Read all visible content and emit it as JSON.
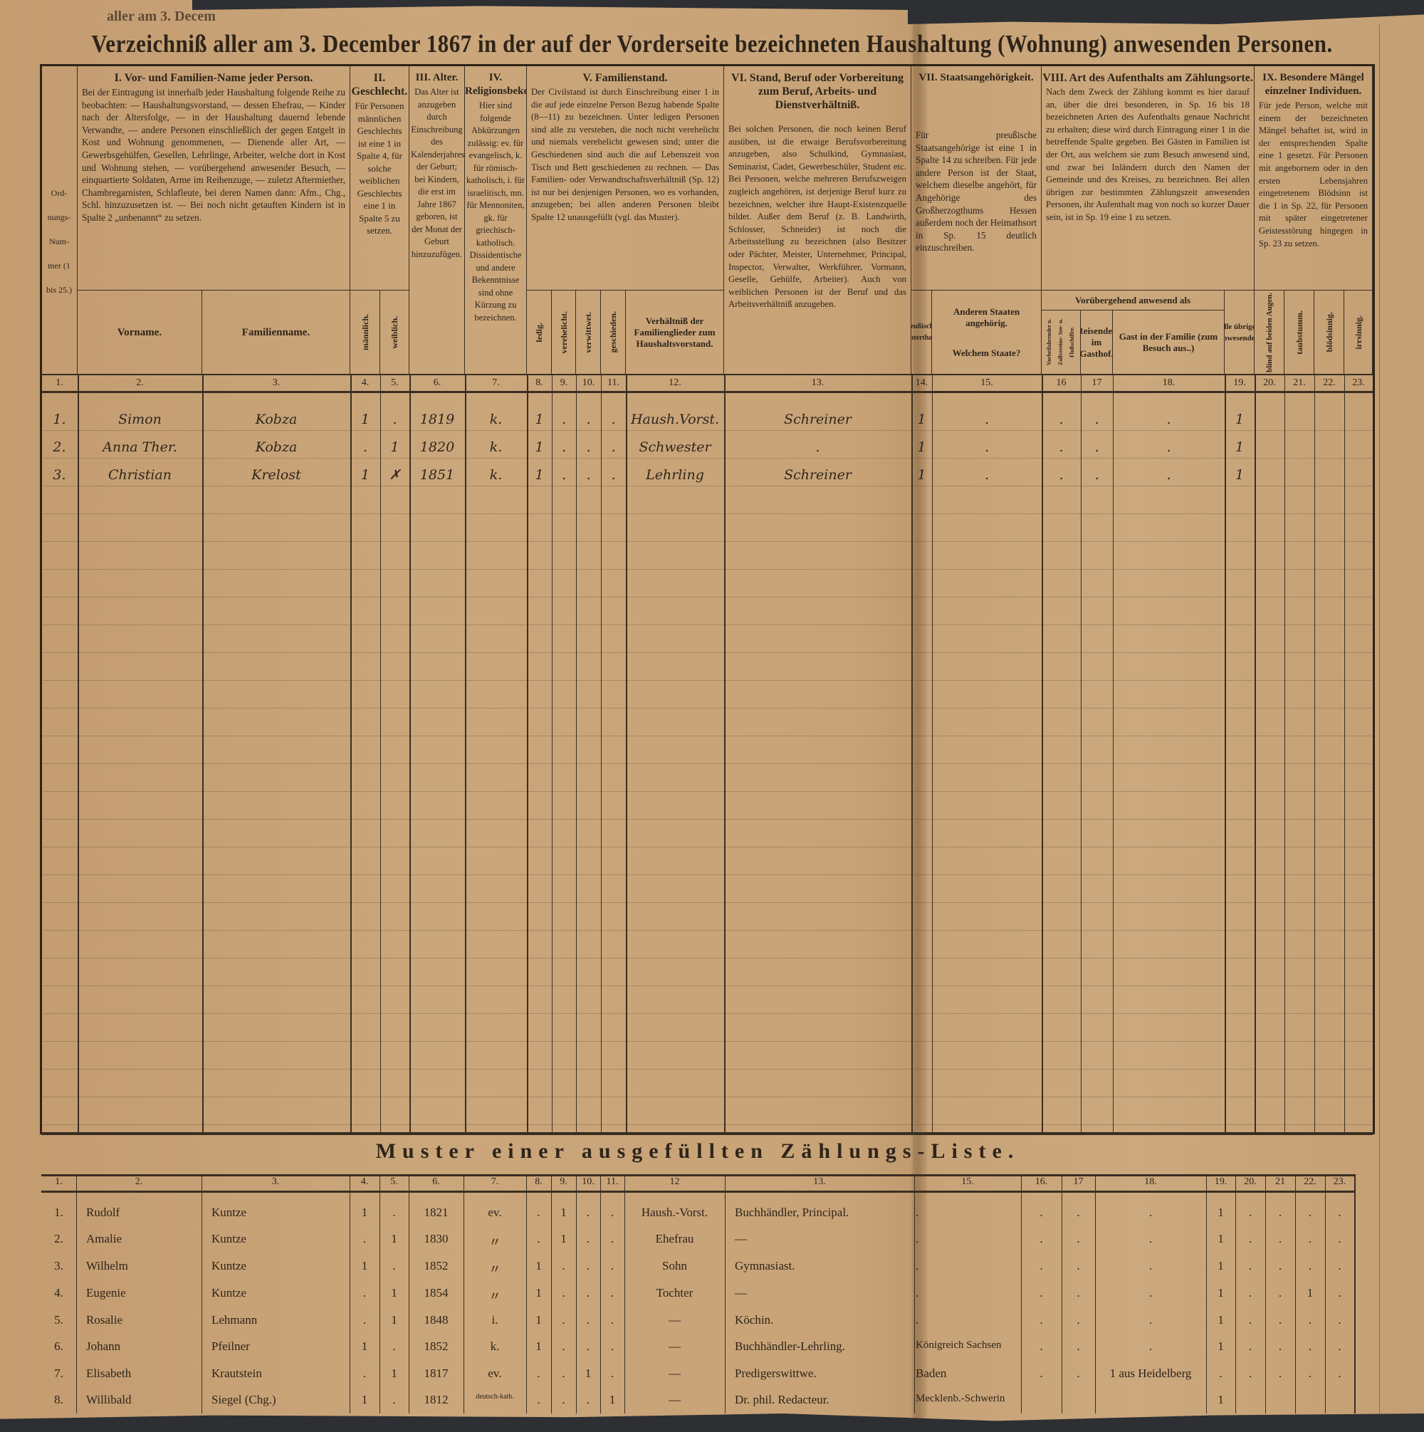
{
  "fragment_text": "aller am 3. Decem",
  "title": "Verzeichniß aller am 3. December 1867 in der auf der Vorderseite bezeichneten Haushaltung (Wohnung) anwesenden Personen.",
  "header": {
    "ordnungsnummer": "Ord-nungs-Num-mer (1 bis 25.)",
    "sec1": {
      "title": "I. Vor- und Familien-Name jeder Person.",
      "text": "Bei der Eintragung ist innerhalb jeder Haushaltung folgende Reihe zu beobachten: — Haushaltungsvorstand, — dessen Ehefrau, — Kinder nach der Altersfolge, — in der Haushaltung dauernd lebende Verwandte, — andere Personen einschließlich der gegen Entgelt in Kost und Wohnung genommenen, — Dienende aller Art, — Gewerbsgehülfen, Gesellen, Lehrlinge, Arbeiter, welche dort in Kost und Wohnung stehen, — vorübergehend anwesender Besuch, — einquartierte Soldaten, Arme im Reihenzuge, — zuletzt Aftermiether, Chambregarnisten, Schlafleute, bei deren Namen dann: Afm., Chg., Schl. hinzuzusetzen ist. — Bei noch nicht getauften Kindern ist in Spalte 2 „unbenannt“ zu setzen.",
      "vorname": "Vorname.",
      "familienname": "Familienname."
    },
    "sec2": {
      "title": "II. Geschlecht.",
      "text": "Für Personen männlichen Geschlechts ist eine 1 in Spalte 4, für solche weiblichen Geschlechts eine 1 in Spalte 5 zu setzen.",
      "maennlich": "männlich.",
      "weiblich": "weiblich."
    },
    "sec3": {
      "title": "III. Alter.",
      "text": "Das Alter ist anzugeben durch Einschreibung des Kalenderjahres der Geburt; bei Kindern, die erst im Jahre 1867 geboren, ist der Monat der Geburt hinzuzufügen."
    },
    "sec4": {
      "title": "IV. Religionsbekenntniß.",
      "text": "Hier sind folgende Abkürzungen zulässig: ev. für evangelisch, k. für römisch-katholisch, i. für israelitisch, mn. für Mennoniten, gk. für griechisch-katholisch. Dissidentische und andere Bekenntnisse sind ohne Kürzung zu bezeichnen."
    },
    "sec5": {
      "title": "V. Familienstand.",
      "text": "Der Civilstand ist durch Einschreibung einer 1 in die auf jede einzelne Person Bezug habende Spalte (8—11) zu bezeichnen. Unter ledigen Personen sind alle zu verstehen, die noch nicht verehelicht und niemals verehelicht gewesen sind; unter die Geschiedenen sind auch die auf Lebenszeit von Tisch und Bett geschiedenen zu rechnen. — Das Familien- oder Verwandtschaftsverhältniß (Sp. 12) ist nur bei denjenigen Personen, wo es vorhanden, anzugeben; bei allen anderen Personen bleibt Spalte 12 unausgefüllt (vgl. das Muster).",
      "ledig": "ledig.",
      "verehelicht": "verehelicht.",
      "verwittwet": "verwittwet.",
      "geschieden": "geschieden.",
      "verhaeltniss": "Verhältniß der Familienglieder zum Haushaltsvorstand."
    },
    "sec6": {
      "title": "VI. Stand, Beruf oder Vorbereitung zum Beruf, Arbeits- und Dienstverhältniß.",
      "text": "Bei solchen Personen, die noch keinen Beruf ausüben, ist die etwaige Berufsvorbereitung anzugeben, also Schulkind, Gymnasiast, Seminarist, Cadet, Gewerbeschüler, Student etc. Bei Personen, welche mehreren Berufszweigen zugleich angehören, ist derjenige Beruf kurz zu bezeichnen, welcher ihre Haupt-Existenzquelle bildet. Außer dem Beruf (z. B. Landwirth, Schlosser, Schneider) ist noch die Arbeitsstellung zu bezeichnen (also Besitzer oder Pächter, Meister, Unternehmer, Principal, Inspector, Verwalter, Werkführer, Vormann, Geselle, Gehülfe, Arbeiter). Auch von weiblichen Personen ist der Beruf und das Arbeitsverhältniß anzugeben."
    },
    "sec7": {
      "title": "VII. Staatsangehörigkeit.",
      "text": "Für preußische Staatsangehörige ist eine 1 in Spalte 14 zu schreiben. Für jede andere Person ist der Staat, welchem dieselbe angehört, für Angehörige des Großherzogthums Hessen außerdem noch der Heimathsort in Sp. 15 deutlich einzuschreiben.",
      "preussisch": "Preußischer Unterthan.",
      "andere": "Anderen Staaten angehörig.",
      "welchem": "Welchem Staate?"
    },
    "sec8": {
      "title": "VIII. Art des Aufenthalts am Zählungsorte.",
      "text": "Nach dem Zweck der Zählung kommt es hier darauf an, über die drei besonderen, in Sp. 16 bis 18 bezeichneten Arten des Aufenthalts genaue Nachricht zu erhalten; diese wird durch Eintragung einer 1 in die betreffende Spalte gegeben. Bei Gästen in Familien ist der Ort, aus welchem sie zum Besuch anwesend sind, und zwar bei Inländern durch den Namen der Gemeinde und des Kreises, zu bezeichnen. Bei allen übrigen zur bestimmten Zählungszeit anwesenden Personen, ihr Aufenthalt mag von noch so kurzer Dauer sein, ist in Sp. 19 eine 1 zu setzen.",
      "voruebergehend": "Vorübergehend anwesend als",
      "schiffer": "Vorbeifahrender u. Zollvereins- See- u. Flußschiffer.",
      "reisender": "Reisender im Gasthof.",
      "gast": "Gast in der Familie (zum Besuch aus..)",
      "alle": "Alle übrigen Anwesenden."
    },
    "sec9": {
      "title": "IX. Besondere Mängel einzelner Individuen.",
      "text": "Für jede Person, welche mit einem der bezeichneten Mängel behaftet ist, wird in der entsprechenden Spalte eine 1 gesetzt. Für Personen mit angebornem oder in den ersten Lebensjahren eingetretenem Blödsinn ist die 1 in Sp. 22, für Personen mit später eingetretener Geistesstörung hingegen in Sp. 23 zu setzen.",
      "blind": "blind auf beiden Augen.",
      "taubstumm": "taubstumm.",
      "bloedsinnig": "blödsinnig.",
      "irrsinnig": "irrsinnig."
    }
  },
  "column_numbers": [
    "1.",
    "2.",
    "3.",
    "4.",
    "5.",
    "6.",
    "7.",
    "8.",
    "9.",
    "10.",
    "11.",
    "12.",
    "13.",
    "14.",
    "15.",
    "16",
    "17",
    "18.",
    "19.",
    "20.",
    "21.",
    "22.",
    "23."
  ],
  "entries": [
    [
      "1.",
      "Simon",
      "Kobza",
      "1",
      ".",
      "1819",
      "k.",
      "1",
      ".",
      ".",
      ".",
      "Haush.Vorst.",
      "Schreiner",
      "1",
      ".",
      ".",
      ".",
      ".",
      "1",
      "",
      "",
      "",
      ""
    ],
    [
      "2.",
      "Anna Ther.",
      "Kobza",
      ".",
      "1",
      "1820",
      "k.",
      "1",
      ".",
      ".",
      ".",
      "Schwester",
      ".",
      "1",
      ".",
      ".",
      ".",
      ".",
      "1",
      "",
      "",
      "",
      ""
    ],
    [
      "3.",
      "Christian",
      "Krelost",
      "1",
      "✗",
      "1851",
      "k.",
      "1",
      ".",
      ".",
      ".",
      "Lehrling",
      "Schreiner",
      "1",
      ".",
      ".",
      ".",
      ".",
      "1",
      "",
      "",
      "",
      ""
    ]
  ],
  "sample": {
    "title": "Muster einer ausgefüllten Zählungs-Liste.",
    "column_numbers": [
      "1.",
      "2.",
      "3.",
      "4.",
      "5.",
      "6.",
      "7.",
      "8.",
      "9.",
      "10.",
      "11.",
      "12",
      "13.",
      "15.",
      "16.",
      "17",
      "18.",
      "19.",
      "20.",
      "21",
      "22.",
      "23."
    ],
    "rows": [
      [
        "1.",
        "Rudolf",
        "Kuntze",
        "1",
        ".",
        "1821",
        "ev.",
        ".",
        "1",
        ".",
        ".",
        "Haush.-Vorst.",
        "Buchhändler, Principal.",
        ".",
        ".",
        ".",
        ".",
        "1",
        ".",
        ".",
        ".",
        "."
      ],
      [
        "2.",
        "Amalie",
        "Kuntze",
        ".",
        "1",
        "1830",
        "〃",
        ".",
        "1",
        ".",
        ".",
        "Ehefrau",
        "—",
        ".",
        ".",
        ".",
        ".",
        "1",
        ".",
        ".",
        ".",
        "."
      ],
      [
        "3.",
        "Wilhelm",
        "Kuntze",
        "1",
        ".",
        "1852",
        "〃",
        "1",
        ".",
        ".",
        ".",
        "Sohn",
        "Gymnasiast.",
        ".",
        ".",
        ".",
        ".",
        "1",
        ".",
        ".",
        ".",
        "."
      ],
      [
        "4.",
        "Eugenie",
        "Kuntze",
        ".",
        "1",
        "1854",
        "〃",
        "1",
        ".",
        ".",
        ".",
        "Tochter",
        "—",
        ".",
        ".",
        ".",
        ".",
        "1",
        ".",
        ".",
        "1",
        "."
      ],
      [
        "5.",
        "Rosalie",
        "Lehmann",
        ".",
        "1",
        "1848",
        "i.",
        "1",
        ".",
        ".",
        ".",
        "—",
        "Köchin.",
        ".",
        ".",
        ".",
        ".",
        "1",
        ".",
        ".",
        ".",
        "."
      ],
      [
        "6.",
        "Johann",
        "Pfeilner",
        "1",
        ".",
        "1852",
        "k.",
        "1",
        ".",
        ".",
        ".",
        "—",
        "Buchhändler-Lehrling.",
        "Königreich Sachsen",
        ".",
        ".",
        ".",
        "1",
        ".",
        ".",
        ".",
        "."
      ],
      [
        "7.",
        "Elisabeth",
        "Krautstein",
        ".",
        "1",
        "1817",
        "ev.",
        ".",
        ".",
        "1",
        ".",
        "—",
        "Predigerswittwe.",
        "Baden",
        ".",
        ".",
        "1 aus Heidelberg",
        ".",
        ".",
        ".",
        ".",
        "."
      ],
      [
        "8.",
        "Willibald",
        "Siegel (Chg.)",
        "1",
        ".",
        "1812",
        "deutsch-kath.",
        ".",
        ".",
        ".",
        "1",
        "—",
        "Dr. phil. Redacteur.",
        "Mecklenb.-Schwerin",
        "",
        "",
        "",
        "1",
        "",
        "",
        "",
        ""
      ]
    ]
  },
  "colors": {
    "paper": "#c8a377",
    "ink": "#2e2419",
    "background": "#2d2f33"
  }
}
